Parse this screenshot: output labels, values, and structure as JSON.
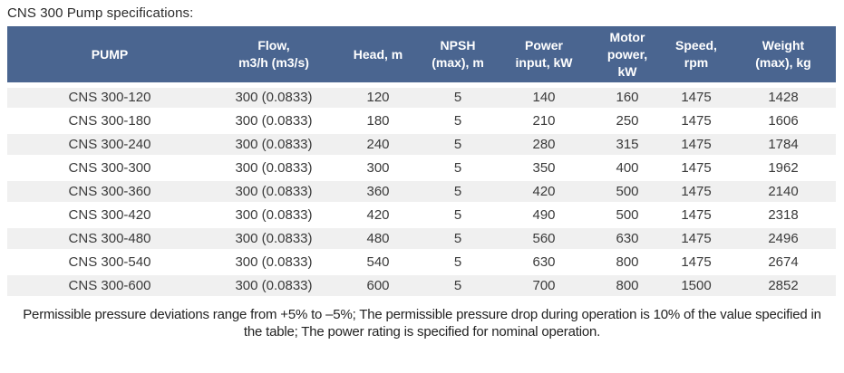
{
  "chart_data": {
    "type": "table",
    "title": "CNS 300 Pump specifications:",
    "columns": [
      "PUMP",
      "Flow,\nm3/h (m3/s)",
      "Head, m",
      "NPSH\n(max), m",
      "Power\ninput, kW",
      "Motor\npower,\nkW",
      "Speed,\nrpm",
      "Weight\n(max), kg"
    ],
    "rows": [
      [
        "CNS 300-120",
        "300 (0.0833)",
        "120",
        "5",
        "140",
        "160",
        "1475",
        "1428"
      ],
      [
        "CNS 300-180",
        "300 (0.0833)",
        "180",
        "5",
        "210",
        "250",
        "1475",
        "1606"
      ],
      [
        "CNS 300-240",
        "300 (0.0833)",
        "240",
        "5",
        "280",
        "315",
        "1475",
        "1784"
      ],
      [
        "CNS 300-300",
        "300 (0.0833)",
        "300",
        "5",
        "350",
        "400",
        "1475",
        "1962"
      ],
      [
        "CNS 300-360",
        "300 (0.0833)",
        "360",
        "5",
        "420",
        "500",
        "1475",
        "2140"
      ],
      [
        "CNS 300-420",
        "300 (0.0833)",
        "420",
        "5",
        "490",
        "500",
        "1475",
        "2318"
      ],
      [
        "CNS 300-480",
        "300 (0.0833)",
        "480",
        "5",
        "560",
        "630",
        "1475",
        "2496"
      ],
      [
        "CNS 300-540",
        "300 (0.0833)",
        "540",
        "5",
        "630",
        "800",
        "1475",
        "2674"
      ],
      [
        "CNS 300-600",
        "300 (0.0833)",
        "600",
        "5",
        "700",
        "800",
        "1500",
        "2852"
      ]
    ],
    "footnote": "Permissible pressure deviations range from +5% to –5%; The permissible pressure drop during operation is 10% of the value specified in the table; The power rating is specified for nominal operation.",
    "layout": {
      "header_position": "top",
      "row_striping": true,
      "grid": "horizontal-white-gaps"
    },
    "colors": {
      "header_background": "#4a6590",
      "header_text": "#ffffff",
      "row_alt_background": "#f0f0f0",
      "row_background": "#ffffff",
      "body_text": "#3a3a3a"
    }
  }
}
